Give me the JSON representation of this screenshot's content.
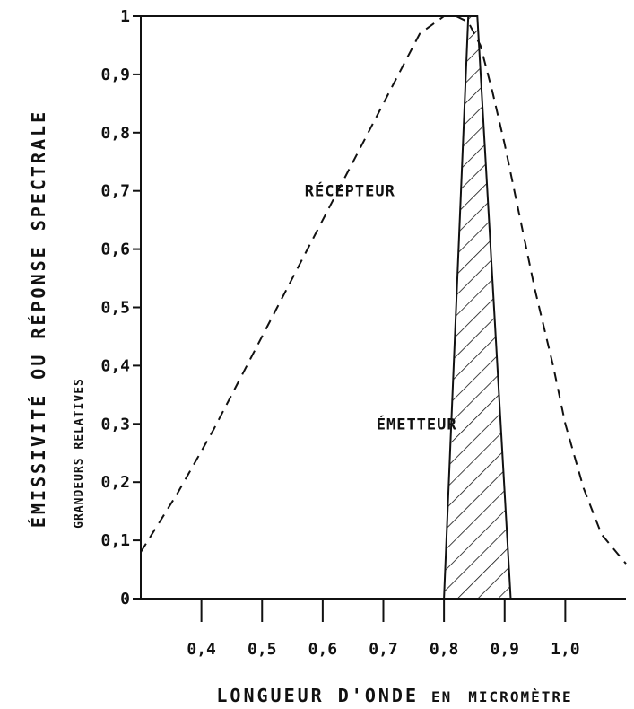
{
  "chart_data": {
    "type": "line",
    "xlabel": "LONGUEUR D'ONDE EN MICROMÈTRE",
    "xlabel_parts": [
      "LONGUEUR D'ONDE",
      "EN",
      "MICROMÈTRE"
    ],
    "ylabel": "ÉMISSIVITÉ OU RÉPONSE SPECTRALE",
    "ylabel_sub": "GRANDEURS RELATIVES",
    "xlim": [
      0.3,
      1.1
    ],
    "ylim": [
      0,
      1
    ],
    "x_ticks": [
      0.4,
      0.5,
      0.6,
      0.7,
      0.8,
      0.9,
      1.0
    ],
    "x_tick_labels": [
      "0,4",
      "0,5",
      "0,6",
      "0,7",
      "0,8",
      "0,9",
      "1,0"
    ],
    "y_ticks": [
      0,
      0.1,
      0.2,
      0.3,
      0.4,
      0.5,
      0.6,
      0.7,
      0.8,
      0.9,
      1
    ],
    "y_tick_labels": [
      "0",
      "0,1",
      "0,2",
      "0,3",
      "0,4",
      "0,5",
      "0,6",
      "0,7",
      "0,8",
      "0,9",
      "1"
    ],
    "grid": false,
    "series": [
      {
        "name": "RÉCEPTEUR",
        "style": "dashed",
        "color": "#111111",
        "x": [
          0.3,
          0.36,
          0.42,
          0.48,
          0.54,
          0.6,
          0.66,
          0.72,
          0.76,
          0.8,
          0.82,
          0.84,
          0.86,
          0.88,
          0.9,
          0.92,
          0.95,
          0.98,
          1.0,
          1.03,
          1.06,
          1.1
        ],
        "y": [
          0.08,
          0.18,
          0.29,
          0.41,
          0.53,
          0.65,
          0.77,
          0.89,
          0.97,
          1.0,
          1.0,
          0.99,
          0.95,
          0.87,
          0.78,
          0.68,
          0.53,
          0.4,
          0.3,
          0.19,
          0.11,
          0.06
        ]
      },
      {
        "name": "ÉMETTEUR",
        "style": "hatched-area",
        "color": "#111111",
        "x": [
          0.8,
          0.84,
          0.855,
          0.91
        ],
        "y": [
          0,
          1.0,
          1.0,
          0
        ]
      }
    ],
    "annotations": [
      {
        "text": "RÉCEPTEUR",
        "x": 0.645,
        "y": 0.7
      },
      {
        "text": "ÉMETTEUR",
        "x": 0.755,
        "y": 0.3
      }
    ]
  }
}
